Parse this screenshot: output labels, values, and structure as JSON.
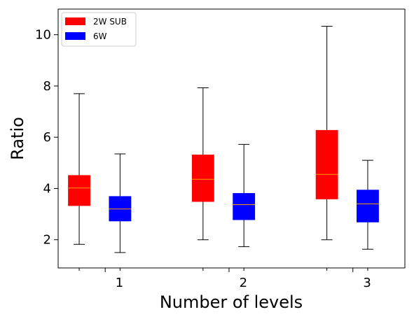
{
  "chart_data": {
    "type": "box",
    "title": "",
    "xlabel": "Number of levels",
    "ylabel": "Ratio",
    "categories": [
      "1",
      "2",
      "3"
    ],
    "ylim": [
      0.9,
      11.0
    ],
    "yticks": [
      2,
      4,
      6,
      8,
      10
    ],
    "grid": false,
    "legend_position": "top-left",
    "series": [
      {
        "name": "2W SUB",
        "color": "#ff0000",
        "median_color": "#ff9900",
        "boxes": [
          {
            "category": "1",
            "whisker_low": 1.82,
            "q1": 3.32,
            "median": 4.02,
            "q3": 4.52,
            "whisker_high": 7.7
          },
          {
            "category": "2",
            "whisker_low": 2.0,
            "q1": 3.48,
            "median": 4.36,
            "q3": 5.32,
            "whisker_high": 7.93
          },
          {
            "category": "3",
            "whisker_low": 2.0,
            "q1": 3.58,
            "median": 4.55,
            "q3": 6.28,
            "whisker_high": 10.33
          }
        ]
      },
      {
        "name": "6W",
        "color": "#0000ff",
        "median_color": "#ff9900",
        "boxes": [
          {
            "category": "1",
            "whisker_low": 1.5,
            "q1": 2.72,
            "median": 3.2,
            "q3": 3.7,
            "whisker_high": 5.35
          },
          {
            "category": "2",
            "whisker_low": 1.73,
            "q1": 2.77,
            "median": 3.37,
            "q3": 3.82,
            "whisker_high": 5.72
          },
          {
            "category": "3",
            "whisker_low": 1.63,
            "q1": 2.68,
            "median": 3.4,
            "q3": 3.95,
            "whisker_high": 5.1
          }
        ]
      }
    ]
  }
}
